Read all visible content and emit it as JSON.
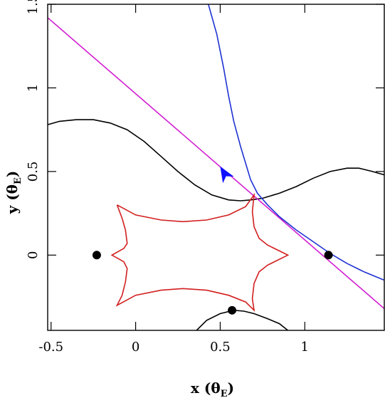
{
  "chart_data": {
    "type": "line",
    "xlabel": "x (θ",
    "xlabel_sub": "E",
    "ylabel": "y (θ",
    "ylabel_sub": "E",
    "xlim": [
      -0.52,
      1.47
    ],
    "ylim": [
      -0.45,
      1.5
    ],
    "x_ticks": [
      -0.5,
      0,
      0.5,
      1
    ],
    "x_tick_labels": [
      "-0.5",
      "0",
      "0.5",
      "1"
    ],
    "y_ticks": [
      0,
      0.5,
      1,
      1.5
    ],
    "y_tick_labels": [
      "0",
      "0.5",
      "1",
      "1.5"
    ],
    "grid": false,
    "colors": {
      "critical": "#000000",
      "caustic": "#d21e1e",
      "source_track": "#d21ed2",
      "trajectory": "#1e32d2",
      "arrow": "#1010ff",
      "lenses": "#000000"
    },
    "series": [
      {
        "type": "line",
        "color": "#000000",
        "points": [
          [
            -0.52,
            0.78
          ],
          [
            -0.45,
            0.8
          ],
          [
            -0.35,
            0.81
          ],
          [
            -0.25,
            0.81
          ],
          [
            -0.15,
            0.79
          ],
          [
            -0.05,
            0.75
          ],
          [
            0.05,
            0.68
          ],
          [
            0.15,
            0.59
          ],
          [
            0.25,
            0.5
          ],
          [
            0.35,
            0.42
          ],
          [
            0.45,
            0.36
          ],
          [
            0.55,
            0.33
          ],
          [
            0.62,
            0.325
          ],
          [
            0.68,
            0.33
          ],
          [
            0.75,
            0.34
          ],
          [
            0.85,
            0.37
          ],
          [
            0.95,
            0.41
          ],
          [
            1.05,
            0.46
          ],
          [
            1.15,
            0.5
          ],
          [
            1.25,
            0.52
          ],
          [
            1.32,
            0.52
          ],
          [
            1.4,
            0.5
          ],
          [
            1.47,
            0.48
          ]
        ]
      },
      {
        "type": "line",
        "color": "#000000",
        "points": [
          [
            0.36,
            -0.45
          ],
          [
            0.42,
            -0.39
          ],
          [
            0.5,
            -0.35
          ],
          [
            0.58,
            -0.33
          ],
          [
            0.64,
            -0.335
          ],
          [
            0.7,
            -0.35
          ],
          [
            0.78,
            -0.38
          ],
          [
            0.85,
            -0.41
          ],
          [
            0.9,
            -0.45
          ]
        ]
      },
      {
        "type": "line",
        "color": "#d21ed2",
        "points": [
          [
            -0.52,
            1.42
          ],
          [
            1.47,
            -0.32
          ]
        ]
      },
      {
        "type": "line",
        "color": "#1e32d2",
        "points": [
          [
            0.43,
            1.5
          ],
          [
            0.48,
            1.32
          ],
          [
            0.52,
            1.12
          ],
          [
            0.55,
            0.95
          ],
          [
            0.58,
            0.8
          ],
          [
            0.62,
            0.65
          ],
          [
            0.65,
            0.55
          ],
          [
            0.68,
            0.45
          ],
          [
            0.72,
            0.37
          ],
          [
            0.78,
            0.3
          ],
          [
            0.85,
            0.23
          ],
          [
            0.95,
            0.15
          ],
          [
            1.05,
            0.08
          ],
          [
            1.15,
            0.01
          ],
          [
            1.25,
            -0.05
          ],
          [
            1.35,
            -0.1
          ],
          [
            1.47,
            -0.15
          ]
        ]
      },
      {
        "type": "line",
        "color": "#d21e1e",
        "points": [
          [
            -0.11,
            0.3
          ],
          [
            -0.08,
            0.22
          ],
          [
            -0.06,
            0.15
          ],
          [
            -0.05,
            0.07
          ],
          [
            -0.07,
            0.04
          ],
          [
            -0.14,
            0.0
          ],
          [
            -0.07,
            -0.04
          ],
          [
            -0.05,
            -0.08
          ],
          [
            -0.06,
            -0.16
          ],
          [
            -0.08,
            -0.24
          ],
          [
            -0.11,
            -0.3
          ],
          [
            0.0,
            -0.24
          ],
          [
            0.15,
            -0.21
          ],
          [
            0.28,
            -0.2
          ],
          [
            0.42,
            -0.21
          ],
          [
            0.55,
            -0.24
          ],
          [
            0.65,
            -0.28
          ],
          [
            0.7,
            -0.33
          ],
          [
            0.69,
            -0.26
          ],
          [
            0.7,
            -0.17
          ],
          [
            0.73,
            -0.1
          ],
          [
            0.78,
            -0.06
          ],
          [
            0.9,
            0.0
          ],
          [
            0.78,
            0.06
          ],
          [
            0.73,
            0.1
          ],
          [
            0.7,
            0.17
          ],
          [
            0.69,
            0.26
          ],
          [
            0.7,
            0.36
          ],
          [
            0.65,
            0.29
          ],
          [
            0.55,
            0.24
          ],
          [
            0.42,
            0.21
          ],
          [
            0.28,
            0.2
          ],
          [
            0.15,
            0.21
          ],
          [
            0.0,
            0.24
          ],
          [
            -0.11,
            0.3
          ]
        ]
      }
    ],
    "lenses": [
      [
        -0.23,
        0.0
      ],
      [
        1.14,
        0.0
      ],
      [
        0.57,
        -0.33
      ]
    ],
    "arrow": {
      "tip": [
        0.5,
        0.53
      ],
      "base": [
        0.53,
        0.48
      ]
    }
  }
}
